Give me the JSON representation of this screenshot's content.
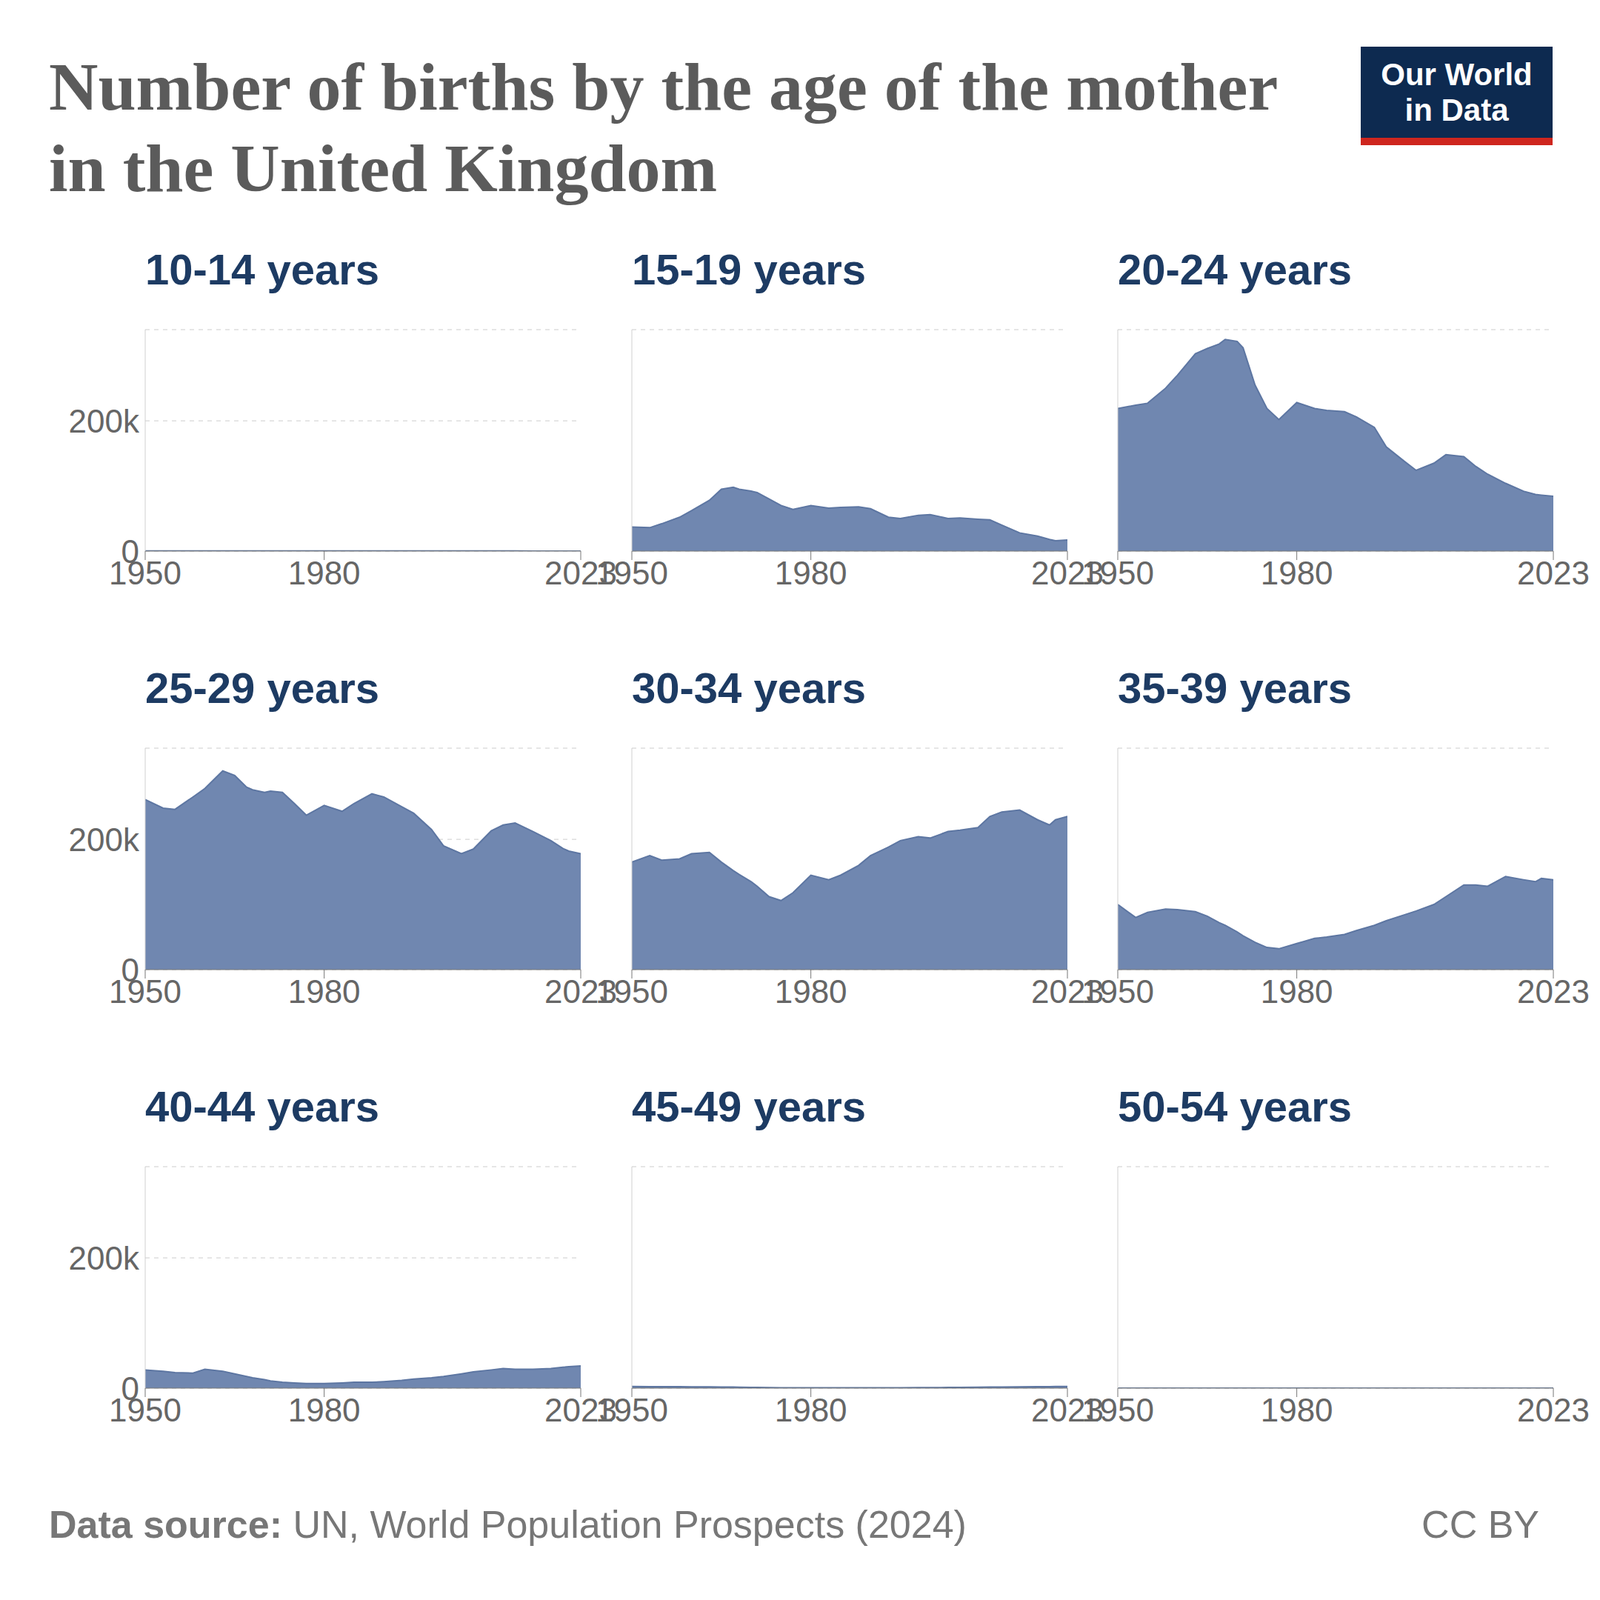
{
  "chart_data": {
    "type": "area",
    "title": "Number of births by the age of the mother in the United Kingdom",
    "logo": [
      "Our World",
      "in Data"
    ],
    "source_label": "Data source:",
    "source": "UN, World Population Prospects (2024)",
    "license": "CC BY",
    "color": "#7087b0",
    "grid": true,
    "xlim": [
      1950,
      2023
    ],
    "xticks": [
      1950,
      1980,
      2023
    ],
    "ylim": [
      0,
      340000
    ],
    "yticks": [
      0,
      {
        "value": 200000,
        "label": "200k"
      }
    ],
    "x": [
      1950,
      1953,
      1955,
      1958,
      1960,
      1963,
      1965,
      1967,
      1968,
      1970,
      1971,
      1973,
      1975,
      1977,
      1980,
      1983,
      1985,
      1988,
      1990,
      1993,
      1995,
      1998,
      2000,
      2003,
      2005,
      2008,
      2010,
      2012,
      2015,
      2018,
      2020,
      2021,
      2023
    ],
    "series": [
      {
        "name": "10-14 years",
        "values": [
          300,
          300,
          300,
          300,
          300,
          300,
          300,
          300,
          300,
          300,
          300,
          250,
          250,
          250,
          250,
          250,
          250,
          200,
          200,
          200,
          200,
          200,
          200,
          200,
          200,
          150,
          150,
          150,
          100,
          100,
          100,
          100,
          100
        ]
      },
      {
        "name": "15-19 years",
        "values": [
          37000,
          36000,
          42000,
          52000,
          62000,
          78000,
          95000,
          98000,
          95000,
          92000,
          90000,
          80000,
          70000,
          64000,
          70000,
          66000,
          67000,
          68000,
          65000,
          52000,
          50000,
          55000,
          56000,
          50000,
          51000,
          49000,
          48000,
          40000,
          28000,
          23000,
          18000,
          16000,
          17000
        ]
      },
      {
        "name": "20-24 years",
        "values": [
          219000,
          224000,
          227000,
          250000,
          270000,
          303000,
          311000,
          318000,
          325000,
          322000,
          312000,
          255000,
          219000,
          202000,
          228000,
          219000,
          216000,
          214000,
          206000,
          190000,
          160000,
          138000,
          124000,
          135000,
          148000,
          145000,
          130000,
          118000,
          104000,
          92000,
          87000,
          86000,
          84000
        ]
      },
      {
        "name": "25-29 years",
        "values": [
          261000,
          248000,
          246000,
          265000,
          278000,
          305000,
          298000,
          280000,
          276000,
          272000,
          274000,
          272000,
          255000,
          237000,
          252000,
          243000,
          255000,
          270000,
          265000,
          250000,
          240000,
          215000,
          190000,
          178000,
          185000,
          213000,
          222000,
          225000,
          212000,
          198000,
          186000,
          182000,
          178000
        ]
      },
      {
        "name": "30-34 years",
        "values": [
          165000,
          175000,
          168000,
          170000,
          178000,
          180000,
          165000,
          152000,
          146000,
          135000,
          128000,
          112000,
          106000,
          118000,
          145000,
          138000,
          145000,
          160000,
          175000,
          188000,
          198000,
          204000,
          202000,
          212000,
          214000,
          218000,
          235000,
          242000,
          245000,
          230000,
          222000,
          230000,
          235000
        ]
      },
      {
        "name": "35-39 years",
        "values": [
          100000,
          80000,
          88000,
          93000,
          92000,
          89000,
          82000,
          72000,
          68000,
          58000,
          52000,
          42000,
          34000,
          32000,
          40000,
          48000,
          50000,
          54000,
          60000,
          68000,
          75000,
          84000,
          90000,
          100000,
          112000,
          130000,
          130000,
          128000,
          143000,
          138000,
          135000,
          140000,
          138000
        ]
      },
      {
        "name": "40-44 years",
        "values": [
          28000,
          26000,
          24000,
          23000,
          29000,
          26000,
          22000,
          18000,
          16000,
          13000,
          11000,
          9000,
          8000,
          7000,
          7000,
          8000,
          9000,
          9000,
          10000,
          12000,
          14000,
          16000,
          18000,
          22000,
          25000,
          28000,
          30000,
          29000,
          29000,
          30000,
          32000,
          33000,
          34000
        ]
      },
      {
        "name": "45-49 years",
        "values": [
          2500,
          2300,
          2200,
          2200,
          2100,
          2000,
          1800,
          1600,
          1400,
          1200,
          1100,
          900,
          700,
          600,
          500,
          500,
          500,
          500,
          500,
          600,
          700,
          800,
          900,
          1000,
          1200,
          1500,
          1700,
          1800,
          2000,
          2200,
          2400,
          2500,
          2600
        ]
      },
      {
        "name": "50-54 years",
        "values": [
          100,
          100,
          100,
          100,
          100,
          100,
          100,
          100,
          100,
          100,
          50,
          50,
          50,
          50,
          50,
          50,
          50,
          50,
          50,
          50,
          50,
          50,
          50,
          50,
          50,
          50,
          50,
          50,
          50,
          50,
          50,
          50,
          50
        ]
      }
    ]
  }
}
